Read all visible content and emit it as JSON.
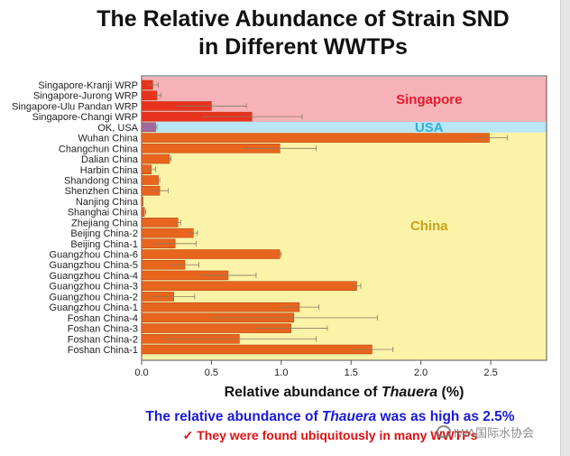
{
  "slide": {
    "title": "The Relative Abundance of Strain SND\nin Different WWTPs",
    "xlabel_prefix": "Relative abundance of ",
    "xlabel_italic": "Thauera",
    "xlabel_suffix": " (%)",
    "footnote1_prefix": "The relative abundance of ",
    "footnote1_italic": "Thauera",
    "footnote1_suffix": " was as high as 2.5%",
    "footnote2": "✓ They were found ubiquitously in many WWTPs",
    "watermark": "IWA国际水协会"
  },
  "chart_data": {
    "type": "bar",
    "orientation": "horizontal",
    "title": "The Relative Abundance of Strain SND in Different WWTPs",
    "xlabel": "Relative abundance of Thauera (%)",
    "xlim": [
      0,
      2.9
    ],
    "xticks": [
      0.0,
      0.5,
      1.0,
      1.5,
      2.0,
      2.5
    ],
    "xtick_labels": [
      "0.0",
      "0.5",
      "1.0",
      "1.5",
      "2.0",
      "2.5"
    ],
    "regions": [
      {
        "name": "Singapore",
        "label": "Singapore",
        "color": "#f7b3b8",
        "label_color": "#e8192c"
      },
      {
        "name": "USA",
        "label": "USA",
        "color": "#b8e6f2",
        "label_color": "#2fb0e0"
      },
      {
        "name": "China",
        "label": "China",
        "color": "#fbf3a8",
        "label_color": "#c9a21a"
      }
    ],
    "categories": [
      "Singapore-Kranji WRP",
      "Singapore-Jurong WRP",
      "Singapore-Ulu Pandan WRP",
      "Singapore-Changi WRP",
      "OK, USA",
      "Wuhan China",
      "Changchun China",
      "Dalian China",
      "Harbin China",
      "Shandong China",
      "Shenzhen China",
      "Nanjing China",
      "Shanghai China",
      "Zhejiang China",
      "Beijing China-2",
      "Beijing China-1",
      "Guangzhou China-6",
      "Guangzhou China-5",
      "Guangzhou China-4",
      "Guangzhou China-3",
      "Guangzhou China-2",
      "Guangzhou China-1",
      "Foshan China-4",
      "Foshan China-3",
      "Foshan China-2",
      "Foshan China-1"
    ],
    "region_of": [
      "Singapore",
      "Singapore",
      "Singapore",
      "Singapore",
      "USA",
      "China",
      "China",
      "China",
      "China",
      "China",
      "China",
      "China",
      "China",
      "China",
      "China",
      "China",
      "China",
      "China",
      "China",
      "China",
      "China",
      "China",
      "China",
      "China",
      "China",
      "China"
    ],
    "values": [
      0.08,
      0.11,
      0.5,
      0.79,
      0.1,
      2.49,
      0.99,
      0.2,
      0.07,
      0.12,
      0.13,
      0.01,
      0.02,
      0.26,
      0.37,
      0.24,
      0.99,
      0.31,
      0.62,
      1.54,
      0.23,
      1.13,
      1.09,
      1.07,
      0.7,
      1.65
    ],
    "errors": [
      0.04,
      0.03,
      0.25,
      0.36,
      0.01,
      0.13,
      0.26,
      0.01,
      0.03,
      0.01,
      0.06,
      0.0,
      0.01,
      0.02,
      0.03,
      0.15,
      0.01,
      0.1,
      0.2,
      0.03,
      0.15,
      0.14,
      0.6,
      0.26,
      0.55,
      0.15
    ],
    "bar_colors": {
      "Singapore": "#e8321e",
      "USA": "#a06aa0",
      "China": "#e8651e"
    }
  }
}
